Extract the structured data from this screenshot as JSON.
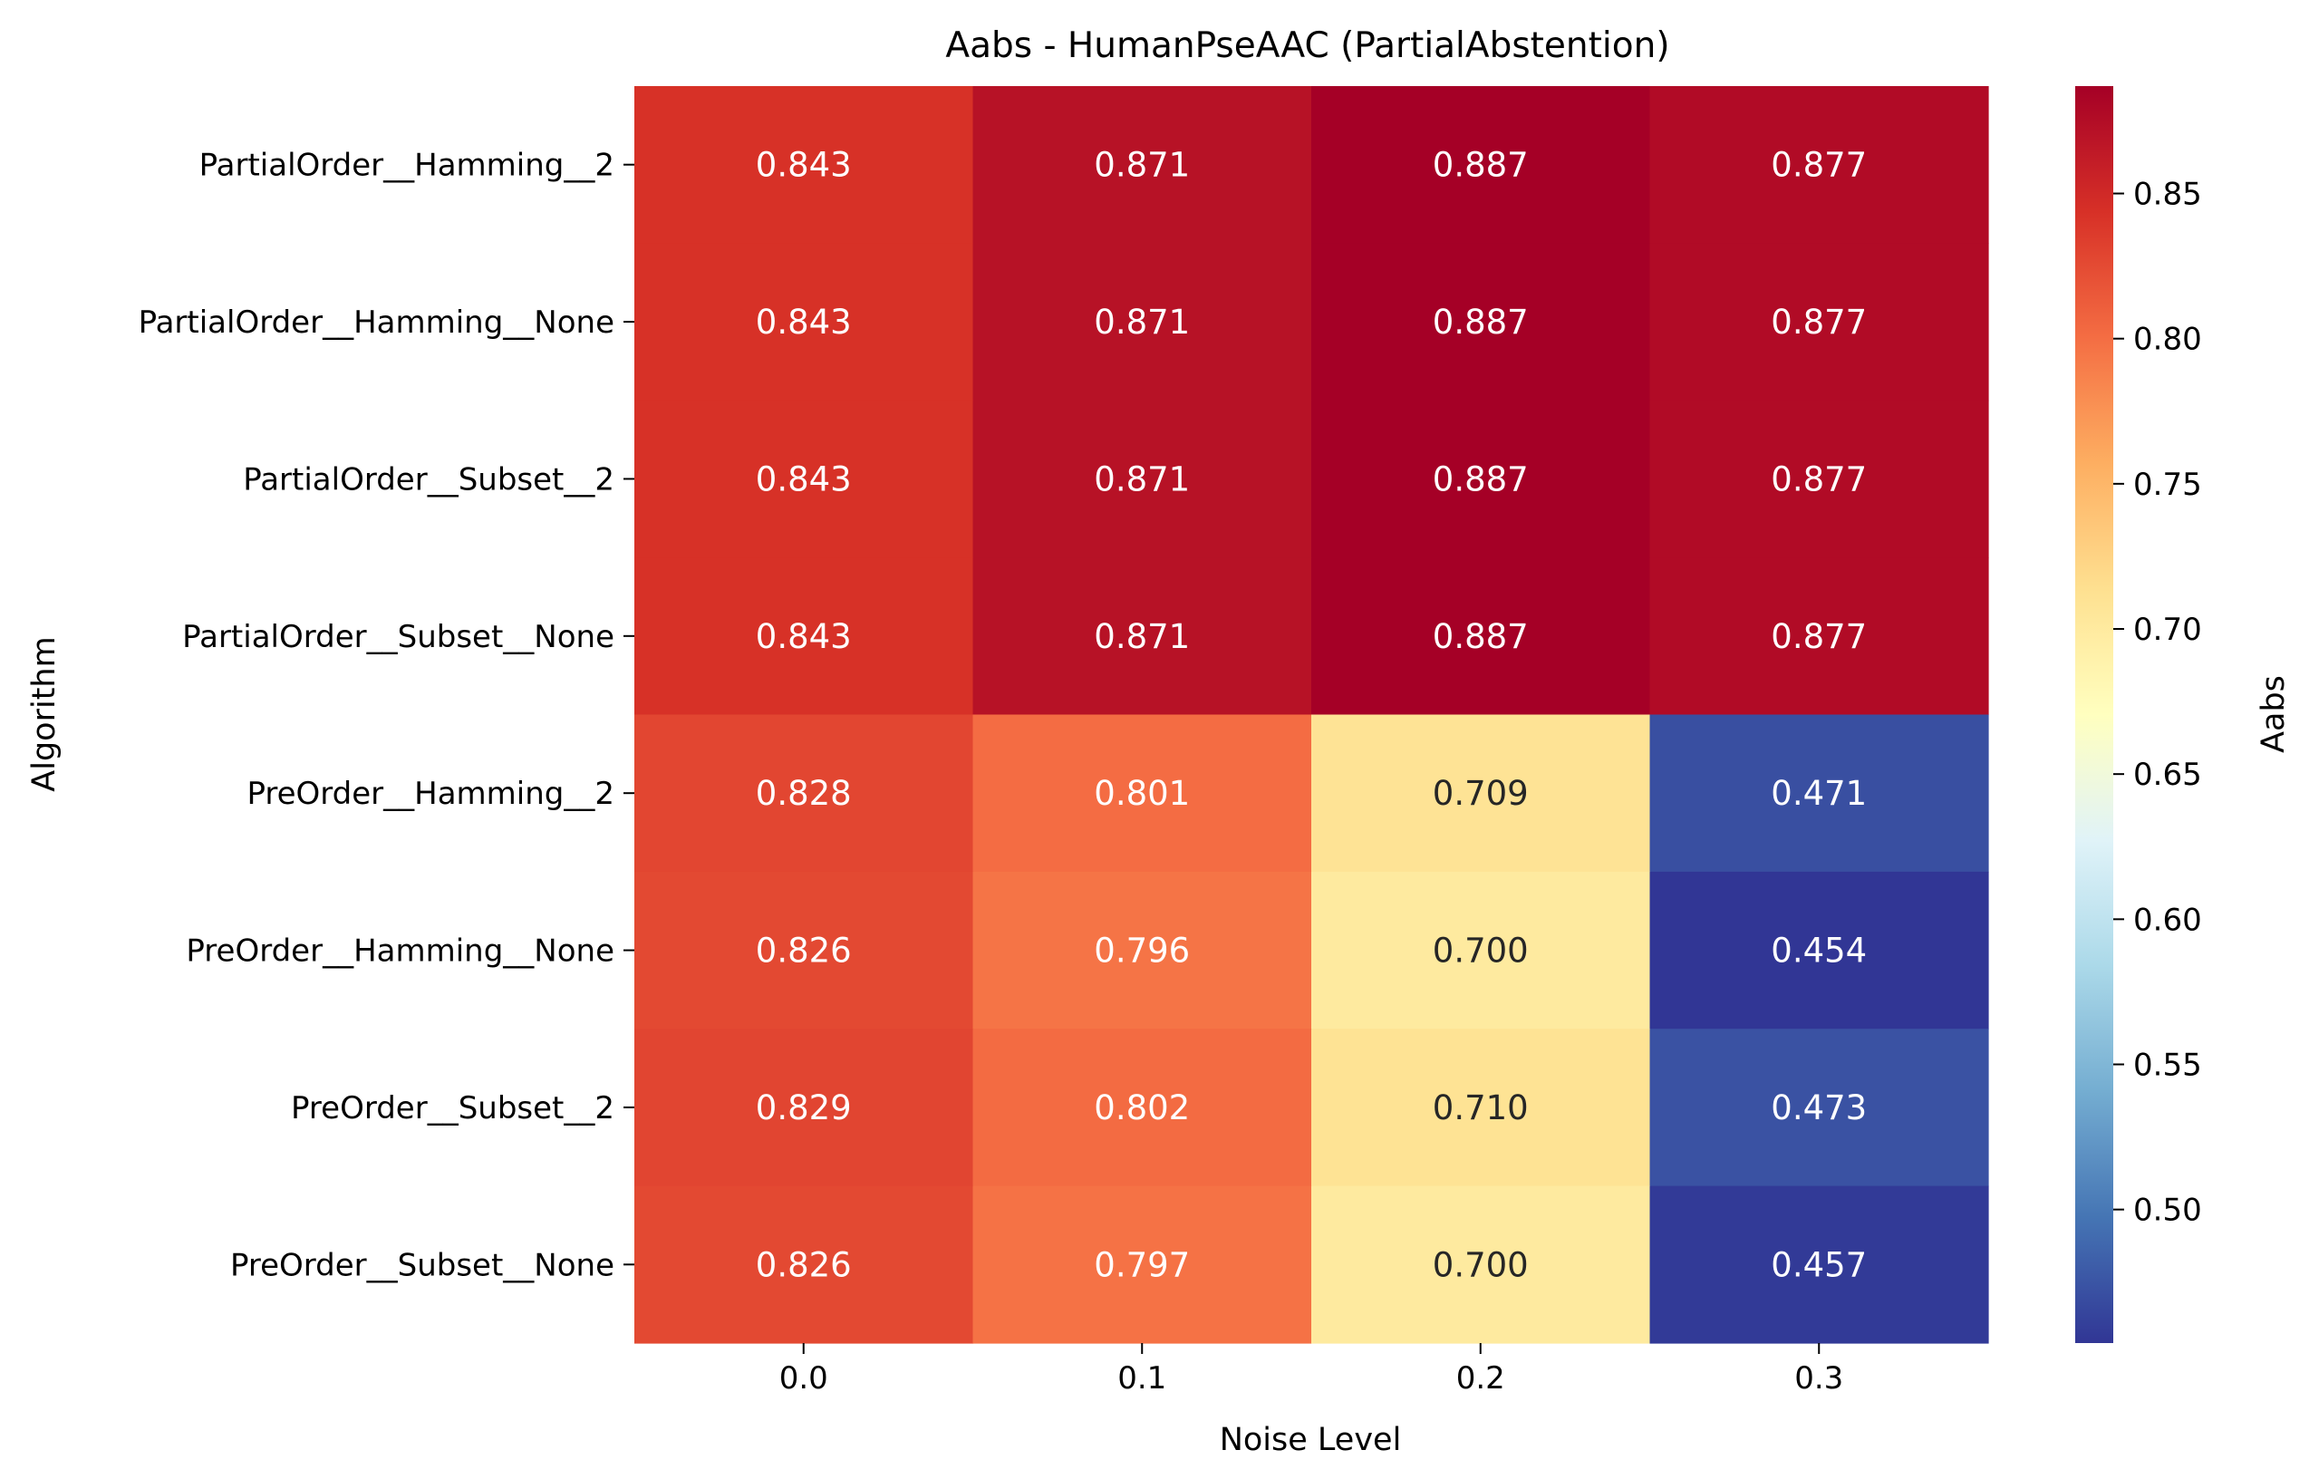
{
  "chart_data": {
    "type": "heatmap",
    "title": "Aabs - HumanPseAAC (PartialAbstention)",
    "xlabel": "Noise Level",
    "ylabel": "Algorithm",
    "colorbar_label": "Aabs",
    "colormap": "RdYlBu_r",
    "vmin": 0.454,
    "vmax": 0.887,
    "x": [
      "0.0",
      "0.1",
      "0.2",
      "0.3"
    ],
    "y": [
      "PartialOrder__Hamming__2",
      "PartialOrder__Hamming__None",
      "PartialOrder__Subset__2",
      "PartialOrder__Subset__None",
      "PreOrder__Hamming__2",
      "PreOrder__Hamming__None",
      "PreOrder__Subset__2",
      "PreOrder__Subset__None"
    ],
    "values": [
      [
        0.843,
        0.871,
        0.887,
        0.877
      ],
      [
        0.843,
        0.871,
        0.887,
        0.877
      ],
      [
        0.843,
        0.871,
        0.887,
        0.877
      ],
      [
        0.843,
        0.871,
        0.887,
        0.877
      ],
      [
        0.828,
        0.801,
        0.709,
        0.471
      ],
      [
        0.826,
        0.796,
        0.7,
        0.454
      ],
      [
        0.829,
        0.802,
        0.71,
        0.473
      ],
      [
        0.826,
        0.797,
        0.7,
        0.457
      ]
    ],
    "value_labels": [
      [
        "0.843",
        "0.871",
        "0.887",
        "0.877"
      ],
      [
        "0.843",
        "0.871",
        "0.887",
        "0.877"
      ],
      [
        "0.843",
        "0.871",
        "0.887",
        "0.877"
      ],
      [
        "0.843",
        "0.871",
        "0.887",
        "0.877"
      ],
      [
        "0.828",
        "0.801",
        "0.709",
        "0.471"
      ],
      [
        "0.826",
        "0.796",
        "0.700",
        "0.454"
      ],
      [
        "0.829",
        "0.802",
        "0.710",
        "0.473"
      ],
      [
        "0.826",
        "0.797",
        "0.700",
        "0.457"
      ]
    ],
    "colorbar_ticks": [
      0.5,
      0.55,
      0.6,
      0.65,
      0.7,
      0.75,
      0.8,
      0.85
    ],
    "colorbar_tick_labels": [
      "0.50",
      "0.55",
      "0.60",
      "0.65",
      "0.70",
      "0.75",
      "0.80",
      "0.85"
    ]
  }
}
